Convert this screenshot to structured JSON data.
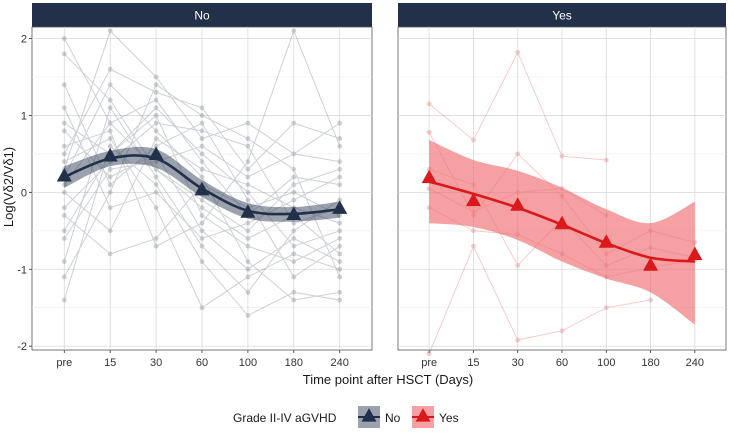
{
  "chart_data": {
    "type": "line",
    "xlabel": "Time point after HSCT (Days)",
    "ylabel": "Log(Vδ2/Vδ1)",
    "categories": [
      "pre",
      "15",
      "30",
      "60",
      "100",
      "180",
      "240"
    ],
    "ylim": [
      -2.05,
      2.15
    ],
    "yticks": [
      -2,
      -1,
      0,
      1,
      2
    ],
    "grid": true,
    "legend": {
      "title": "Grade II-IV aGVHD",
      "position": "bottom",
      "entries": [
        "No",
        "Yes"
      ]
    },
    "panels": [
      {
        "strip": "No",
        "color": "#22304a",
        "band_color": "#22304a",
        "means": [
          0.2,
          0.46,
          0.48,
          0.02,
          -0.27,
          -0.3,
          -0.22
        ],
        "smooth": [
          0.2,
          0.44,
          0.44,
          0.05,
          -0.24,
          -0.28,
          -0.22
        ],
        "band_upper": [
          0.34,
          0.54,
          0.56,
          0.16,
          -0.14,
          -0.19,
          -0.12
        ],
        "band_lower": [
          0.06,
          0.34,
          0.32,
          -0.06,
          -0.34,
          -0.38,
          -0.33
        ],
        "individuals": [
          [
            0.3,
            2.1,
            1.5,
            0.7,
            0.9,
            0.5,
            0.4
          ],
          [
            0.5,
            1.6,
            1.3,
            1.1,
            0.3,
            0.9,
            0.7
          ],
          [
            0.1,
            0.9,
            1.2,
            0.4,
            -0.3,
            0.2,
            0.1
          ],
          [
            -0.2,
            0.4,
            0.9,
            0.8,
            0.6,
            -0.4,
            -0.2
          ],
          [
            0.8,
            0.2,
            0.5,
            -0.5,
            -1.0,
            -0.6,
            -0.9
          ],
          [
            -1.4,
            0.6,
            0.1,
            -0.9,
            -1.6,
            -1.3,
            -1.4
          ],
          [
            1.8,
            1.2,
            0.3,
            -0.1,
            -0.5,
            0.1,
            0.3
          ],
          [
            0.0,
            -0.5,
            0.7,
            0.3,
            0.1,
            -0.2,
            -0.4
          ],
          [
            0.4,
            0.7,
            -0.2,
            -1.5,
            -1.1,
            -0.8,
            -1.0
          ],
          [
            -0.6,
            0.3,
            0.4,
            0.6,
            0.2,
            0.5,
            0.9
          ],
          [
            0.9,
            0.5,
            1.0,
            -0.3,
            -0.7,
            -0.9,
            -0.6
          ],
          [
            -0.3,
            -0.8,
            -0.6,
            0.1,
            -0.2,
            0.0,
            -0.3
          ],
          [
            1.4,
            0.1,
            0.6,
            0.9,
            -0.1,
            -1.1,
            -0.7
          ],
          [
            -0.9,
            1.1,
            0.2,
            -0.7,
            -1.3,
            -0.5,
            -0.1
          ],
          [
            0.6,
            0.8,
            -0.7,
            -0.4,
            0.4,
            2.1,
            0.6
          ],
          [
            -1.1,
            0.0,
            1.4,
            1.0,
            0.7,
            0.3,
            -1.1
          ],
          [
            0.2,
            1.4,
            0.8,
            0.2,
            -0.9,
            -1.4,
            -1.3
          ],
          [
            1.1,
            -0.2,
            0.0,
            -0.6,
            -0.4,
            -0.1,
            0.2
          ],
          [
            -0.5,
            0.5,
            1.1,
            0.5,
            0.0,
            -0.7,
            -0.5
          ],
          [
            2.0,
            0.9,
            0.3,
            -0.2,
            -0.6,
            -0.3,
            -0.8
          ]
        ]
      },
      {
        "strip": "Yes",
        "color": "#d9191c",
        "band_color": "#ef6f72",
        "means": [
          0.18,
          -0.12,
          -0.18,
          -0.42,
          -0.66,
          -0.96,
          -0.82
        ],
        "smooth": [
          0.14,
          -0.02,
          -0.2,
          -0.42,
          -0.66,
          -0.85,
          -0.9
        ],
        "band_upper": [
          0.68,
          0.42,
          0.28,
          0.06,
          -0.22,
          -0.4,
          -0.12
        ],
        "band_lower": [
          -0.4,
          -0.45,
          -0.62,
          -0.9,
          -1.12,
          -1.3,
          -1.72
        ],
        "individuals": [
          [
            1.15,
            0.68,
            1.82,
            0.47,
            0.42,
            null,
            null
          ],
          [
            0.78,
            -0.3,
            0.5,
            -0.05,
            -0.8,
            -0.5,
            -0.65
          ],
          [
            -0.2,
            -0.5,
            -0.55,
            -0.8,
            -1.1,
            -0.98,
            -0.88
          ],
          [
            -2.1,
            -0.7,
            -1.92,
            -1.8,
            -1.5,
            -1.4,
            null
          ],
          [
            0.3,
            0.1,
            -0.95,
            -0.35,
            -0.95,
            -0.72,
            -0.85
          ],
          [
            0.05,
            -0.25,
            0.0,
            0.05,
            -0.3,
            null,
            null
          ]
        ]
      }
    ]
  }
}
